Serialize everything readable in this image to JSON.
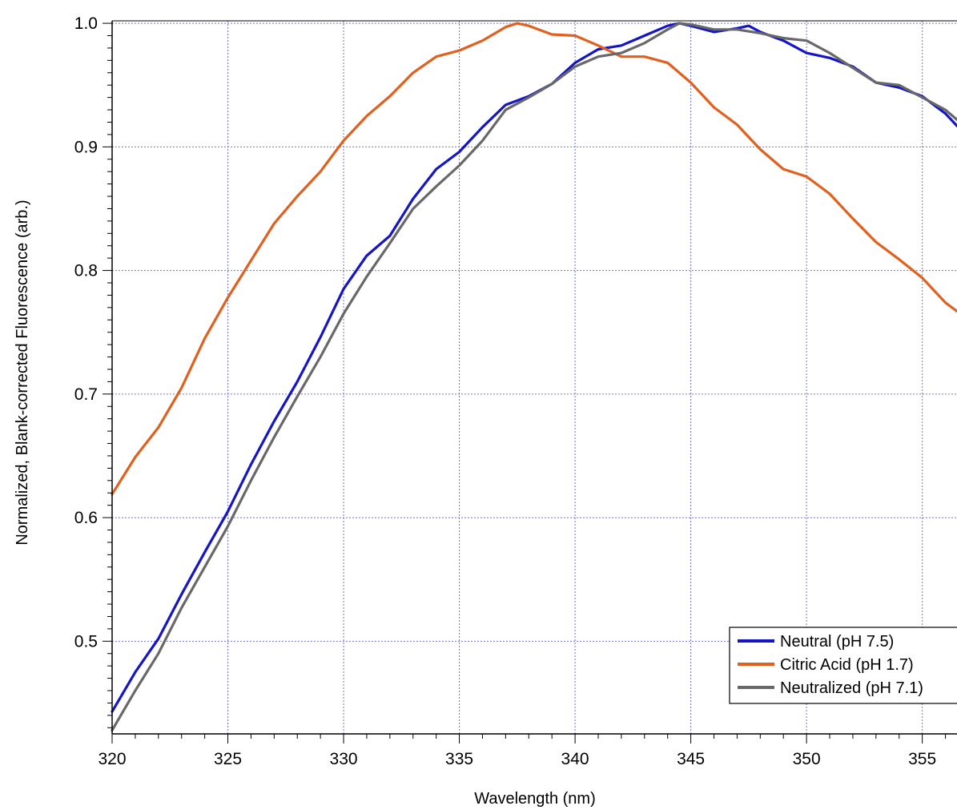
{
  "chart_data": {
    "type": "line",
    "xlabel": "Wavelength (nm)",
    "ylabel": "Normalized, Blank-corrected Fluorescence (arb.)",
    "xlim": [
      320,
      356.5
    ],
    "ylim": [
      0.425,
      1.002
    ],
    "xticks": [
      320,
      325,
      330,
      335,
      340,
      345,
      350,
      355
    ],
    "yticks": [
      0.5,
      0.6,
      0.7,
      0.8,
      0.9,
      1.0
    ],
    "xtick_labels": [
      "320",
      "325",
      "330",
      "335",
      "340",
      "345",
      "350",
      "355"
    ],
    "ytick_labels": [
      "0.5",
      "0.6",
      "0.7",
      "0.8",
      "0.9",
      "1.0"
    ],
    "grid": true,
    "legend_position": "bottom-right",
    "series": [
      {
        "name": "Neutral (pH 7.5)",
        "color": "#1515c8",
        "x": [
          320,
          321,
          322,
          323,
          324,
          325,
          326,
          327,
          328,
          329,
          330,
          331,
          332,
          333,
          334,
          335,
          336,
          337,
          338,
          339,
          340,
          341,
          342,
          343,
          344,
          344.5,
          345,
          346,
          347,
          347.5,
          348,
          349,
          350,
          351,
          352,
          353,
          354,
          355,
          356,
          356.5
        ],
        "y": [
          0.443,
          0.475,
          0.502,
          0.538,
          0.572,
          0.605,
          0.643,
          0.678,
          0.71,
          0.746,
          0.785,
          0.812,
          0.828,
          0.858,
          0.882,
          0.896,
          0.916,
          0.934,
          0.941,
          0.951,
          0.968,
          0.979,
          0.982,
          0.99,
          0.998,
          1.0,
          0.998,
          0.993,
          0.996,
          0.998,
          0.993,
          0.986,
          0.976,
          0.972,
          0.965,
          0.952,
          0.948,
          0.941,
          0.927,
          0.917
        ]
      },
      {
        "name": "Citric Acid (pH 1.7)",
        "color": "#e2601e",
        "x": [
          320,
          321,
          322,
          323,
          324,
          325,
          326,
          327,
          328,
          329,
          330,
          331,
          332,
          333,
          334,
          335,
          336,
          337,
          337.5,
          338,
          339,
          340,
          341,
          342,
          343,
          344,
          345,
          346,
          347,
          348,
          349,
          350,
          351,
          352,
          353,
          354,
          355,
          356,
          356.5
        ],
        "y": [
          0.619,
          0.649,
          0.673,
          0.705,
          0.745,
          0.778,
          0.808,
          0.838,
          0.86,
          0.88,
          0.905,
          0.925,
          0.941,
          0.96,
          0.973,
          0.978,
          0.986,
          0.997,
          1.0,
          0.998,
          0.991,
          0.99,
          0.982,
          0.973,
          0.973,
          0.968,
          0.952,
          0.932,
          0.918,
          0.898,
          0.882,
          0.876,
          0.862,
          0.842,
          0.823,
          0.809,
          0.794,
          0.774,
          0.767
        ]
      },
      {
        "name": "Neutralized (pH 7.1)",
        "color": "#686868",
        "x": [
          320,
          321,
          322,
          323,
          324,
          325,
          326,
          327,
          328,
          329,
          330,
          331,
          332,
          333,
          334,
          335,
          336,
          337,
          338,
          339,
          340,
          341,
          342,
          343,
          344,
          344.5,
          345,
          346,
          347,
          348,
          349,
          350,
          351,
          352,
          353,
          354,
          355,
          356,
          356.5
        ],
        "y": [
          0.428,
          0.46,
          0.49,
          0.527,
          0.56,
          0.593,
          0.63,
          0.665,
          0.698,
          0.73,
          0.765,
          0.795,
          0.822,
          0.85,
          0.868,
          0.885,
          0.905,
          0.93,
          0.94,
          0.951,
          0.965,
          0.973,
          0.976,
          0.984,
          0.995,
          1.0,
          0.999,
          0.995,
          0.995,
          0.992,
          0.988,
          0.986,
          0.976,
          0.964,
          0.952,
          0.95,
          0.94,
          0.93,
          0.922
        ]
      }
    ]
  }
}
